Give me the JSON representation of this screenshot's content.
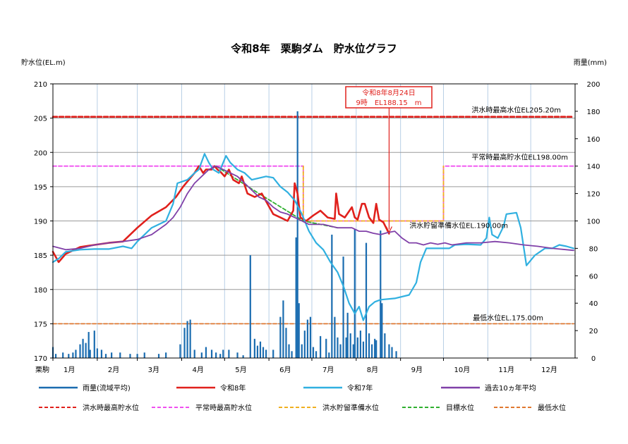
{
  "chart_data": {
    "type": "line",
    "title": "令和8年　栗駒ダム　貯水位グラフ",
    "ylabel_left": "貯水位(EL.m)",
    "ylabel_right": "雨量(mm)",
    "ylim_left": [
      170,
      210
    ],
    "ylim_right": [
      0,
      200
    ],
    "y_ticks_left": [
      170,
      175,
      180,
      185,
      190,
      195,
      200,
      205,
      210
    ],
    "y_ticks_right": [
      0,
      20,
      40,
      60,
      80,
      100,
      120,
      140,
      160,
      180,
      200
    ],
    "x_label_first": "栗駒",
    "x_months": [
      "1月",
      "2月",
      "3月",
      "4月",
      "5月",
      "6月",
      "7月",
      "8月",
      "9月",
      "10月",
      "11月",
      "12月"
    ],
    "xlim": [
      1,
      366
    ],
    "grid": true,
    "legend_position": "bottom",
    "callout": {
      "line1": "令和8年8月24日",
      "line2": "9時　EL188.15　m",
      "target": [
        236,
        188.15
      ]
    },
    "levels": [
      {
        "name": "洪水時最高貯水位",
        "label": "洪水時最高水位EL205.20m",
        "color": "#e0201c",
        "points": [
          [
            1,
            205.2
          ],
          [
            365,
            205.2
          ]
        ]
      },
      {
        "name": "平常時最高貯水位",
        "label": "平常時最高貯水位EL198.00m",
        "color": "#f050f0",
        "points": [
          [
            1,
            198
          ],
          [
            176,
            198
          ],
          [
            176,
            190
          ],
          [
            274,
            190
          ],
          [
            274,
            198
          ],
          [
            365,
            198
          ]
        ]
      },
      {
        "name": "洪水貯留準備水位",
        "label": "洪水貯留準備水位EL.190.00m",
        "color": "#f0b020",
        "points": [
          [
            176,
            198
          ],
          [
            176,
            190
          ],
          [
            274,
            190
          ],
          [
            274,
            198
          ]
        ]
      },
      {
        "name": "目標水位",
        "label": "",
        "color": "#30b030",
        "points": [
          [
            115,
            198
          ],
          [
            145,
            194
          ],
          [
            176,
            190
          ],
          [
            200,
            189
          ]
        ]
      },
      {
        "name": "最低水位",
        "label": "最低水位EL.175.00m",
        "color": "#e07830",
        "points": [
          [
            1,
            175
          ],
          [
            365,
            175
          ]
        ]
      }
    ],
    "series": [
      {
        "name": "令和8年",
        "color": "#e0201c",
        "width": 2.6,
        "points": [
          [
            1,
            185.5
          ],
          [
            5,
            184
          ],
          [
            10,
            185.2
          ],
          [
            20,
            186.2
          ],
          [
            30,
            186.5
          ],
          [
            40,
            186.8
          ],
          [
            50,
            187
          ],
          [
            60,
            189
          ],
          [
            70,
            190.8
          ],
          [
            80,
            192
          ],
          [
            87,
            193.5
          ],
          [
            92,
            195
          ],
          [
            100,
            197
          ],
          [
            103,
            198
          ],
          [
            106,
            197
          ],
          [
            108,
            197.5
          ],
          [
            112,
            197.5
          ],
          [
            114,
            198
          ],
          [
            116,
            197.5
          ],
          [
            118,
            197.2
          ],
          [
            121,
            196.5
          ],
          [
            124,
            197.5
          ],
          [
            127,
            196
          ],
          [
            131,
            195.5
          ],
          [
            133,
            196.5
          ],
          [
            137,
            194
          ],
          [
            142,
            193.5
          ],
          [
            147,
            194
          ],
          [
            151,
            192.5
          ],
          [
            155,
            191
          ],
          [
            160,
            190.5
          ],
          [
            165,
            190
          ],
          [
            169,
            191.5
          ],
          [
            170,
            195.5
          ],
          [
            172,
            194
          ],
          [
            174,
            190.5
          ],
          [
            178,
            190
          ],
          [
            183,
            190.8
          ],
          [
            188,
            191.5
          ],
          [
            193,
            190.5
          ],
          [
            198,
            190.3
          ],
          [
            199,
            194
          ],
          [
            201,
            191
          ],
          [
            205,
            190.5
          ],
          [
            210,
            192
          ],
          [
            212,
            190.5
          ],
          [
            214,
            190.2
          ],
          [
            217,
            192.5
          ],
          [
            219,
            192.5
          ],
          [
            222,
            190.5
          ],
          [
            225,
            189.7
          ],
          [
            227,
            192.5
          ],
          [
            229,
            190.2
          ],
          [
            232,
            189.8
          ],
          [
            236,
            188.15
          ]
        ]
      },
      {
        "name": "令和7年",
        "color": "#30b0e0",
        "width": 2.2,
        "points": [
          [
            1,
            184
          ],
          [
            5,
            184.5
          ],
          [
            10,
            185.5
          ],
          [
            20,
            185.8
          ],
          [
            30,
            185.9
          ],
          [
            40,
            185.9
          ],
          [
            50,
            186.3
          ],
          [
            56,
            186
          ],
          [
            60,
            187
          ],
          [
            65,
            188
          ],
          [
            70,
            189
          ],
          [
            80,
            190
          ],
          [
            85,
            192.5
          ],
          [
            88,
            195.5
          ],
          [
            95,
            196
          ],
          [
            100,
            197
          ],
          [
            103,
            197.5
          ],
          [
            107,
            199.8
          ],
          [
            110,
            198.5
          ],
          [
            113,
            197.5
          ],
          [
            117,
            197
          ],
          [
            122,
            199.5
          ],
          [
            125,
            198.5
          ],
          [
            130,
            197.5
          ],
          [
            135,
            197
          ],
          [
            140,
            196
          ],
          [
            150,
            196.5
          ],
          [
            155,
            196.3
          ],
          [
            160,
            195
          ],
          [
            165,
            194.2
          ],
          [
            170,
            193
          ],
          [
            175,
            191
          ],
          [
            180,
            188.5
          ],
          [
            185,
            186.8
          ],
          [
            190,
            185.8
          ],
          [
            195,
            184
          ],
          [
            200,
            182.5
          ],
          [
            204,
            180.5
          ],
          [
            208,
            178
          ],
          [
            212,
            176.5
          ],
          [
            215,
            177.5
          ],
          [
            218,
            175.5
          ],
          [
            222,
            177.5
          ],
          [
            226,
            178.2
          ],
          [
            230,
            178.5
          ],
          [
            240,
            178.7
          ],
          [
            250,
            179.2
          ],
          [
            255,
            181
          ],
          [
            258,
            184
          ],
          [
            262,
            186
          ],
          [
            268,
            186
          ],
          [
            278,
            186
          ],
          [
            282,
            186.5
          ],
          [
            290,
            186.6
          ],
          [
            300,
            186.5
          ],
          [
            304,
            187.5
          ],
          [
            306,
            190.5
          ],
          [
            308,
            188
          ],
          [
            312,
            187.5
          ],
          [
            316,
            189.2
          ],
          [
            318,
            191
          ],
          [
            325,
            191.2
          ],
          [
            328,
            189
          ],
          [
            332,
            183.5
          ],
          [
            338,
            185
          ],
          [
            345,
            186
          ],
          [
            350,
            186
          ],
          [
            355,
            186.5
          ],
          [
            360,
            186.3
          ],
          [
            365,
            186
          ]
        ]
      },
      {
        "name": "過去10ヵ年平均",
        "color": "#8040a8",
        "width": 1.8,
        "points": [
          [
            1,
            186.3
          ],
          [
            10,
            185.8
          ],
          [
            20,
            186
          ],
          [
            30,
            186.5
          ],
          [
            40,
            186.8
          ],
          [
            50,
            187
          ],
          [
            60,
            187.3
          ],
          [
            70,
            188
          ],
          [
            80,
            189.5
          ],
          [
            85,
            190.5
          ],
          [
            90,
            192
          ],
          [
            95,
            194
          ],
          [
            100,
            195.5
          ],
          [
            105,
            196.5
          ],
          [
            110,
            197.5
          ],
          [
            115,
            198
          ],
          [
            120,
            197.5
          ],
          [
            125,
            197
          ],
          [
            130,
            196.5
          ],
          [
            135,
            195.5
          ],
          [
            140,
            194.5
          ],
          [
            145,
            193.5
          ],
          [
            150,
            193
          ],
          [
            155,
            192
          ],
          [
            160,
            191.3
          ],
          [
            165,
            191
          ],
          [
            170,
            190.5
          ],
          [
            175,
            190
          ],
          [
            180,
            189.5
          ],
          [
            190,
            189.5
          ],
          [
            200,
            189
          ],
          [
            210,
            189
          ],
          [
            215,
            188.5
          ],
          [
            220,
            188.5
          ],
          [
            225,
            188.2
          ],
          [
            230,
            188
          ],
          [
            235,
            188.3
          ],
          [
            240,
            188.5
          ],
          [
            245,
            187.5
          ],
          [
            250,
            186.8
          ],
          [
            255,
            186.8
          ],
          [
            260,
            186.5
          ],
          [
            265,
            186.8
          ],
          [
            270,
            186.6
          ],
          [
            275,
            186.8
          ],
          [
            280,
            186.5
          ],
          [
            290,
            186.8
          ],
          [
            300,
            186.8
          ],
          [
            310,
            187
          ],
          [
            320,
            186.8
          ],
          [
            330,
            186.5
          ],
          [
            340,
            186.3
          ],
          [
            350,
            186
          ],
          [
            360,
            185.8
          ],
          [
            365,
            185.7
          ]
        ]
      }
    ],
    "rain_series": {
      "name": "雨量(流域平均)",
      "color": "#1a6cb0",
      "values": [
        [
          1,
          8
        ],
        [
          3,
          3
        ],
        [
          8,
          4
        ],
        [
          12,
          3
        ],
        [
          15,
          4
        ],
        [
          17,
          6
        ],
        [
          20,
          10
        ],
        [
          22,
          14
        ],
        [
          24,
          11
        ],
        [
          26,
          19
        ],
        [
          27,
          6
        ],
        [
          30,
          20
        ],
        [
          32,
          7
        ],
        [
          35,
          6
        ],
        [
          38,
          3
        ],
        [
          42,
          4
        ],
        [
          48,
          4
        ],
        [
          55,
          3
        ],
        [
          60,
          3
        ],
        [
          65,
          4
        ],
        [
          75,
          3
        ],
        [
          80,
          4
        ],
        [
          90,
          10
        ],
        [
          93,
          22
        ],
        [
          95,
          27
        ],
        [
          97,
          28
        ],
        [
          100,
          6
        ],
        [
          105,
          4
        ],
        [
          108,
          8
        ],
        [
          112,
          6
        ],
        [
          115,
          4
        ],
        [
          118,
          3
        ],
        [
          120,
          6
        ],
        [
          124,
          6
        ],
        [
          130,
          4
        ],
        [
          134,
          2
        ],
        [
          139,
          75
        ],
        [
          142,
          14
        ],
        [
          144,
          9
        ],
        [
          146,
          12
        ],
        [
          148,
          8
        ],
        [
          150,
          6
        ],
        [
          155,
          6
        ],
        [
          160,
          30
        ],
        [
          162,
          42
        ],
        [
          164,
          22
        ],
        [
          166,
          10
        ],
        [
          168,
          5
        ],
        [
          171,
          88
        ],
        [
          172,
          180
        ],
        [
          173,
          40
        ],
        [
          175,
          10
        ],
        [
          177,
          20
        ],
        [
          179,
          28
        ],
        [
          181,
          30
        ],
        [
          183,
          8
        ],
        [
          185,
          5
        ],
        [
          188,
          16
        ],
        [
          192,
          14
        ],
        [
          194,
          4
        ],
        [
          196,
          90
        ],
        [
          198,
          30
        ],
        [
          200,
          15
        ],
        [
          202,
          10
        ],
        [
          204,
          74
        ],
        [
          206,
          15
        ],
        [
          207,
          33
        ],
        [
          209,
          18
        ],
        [
          211,
          10
        ],
        [
          212,
          94
        ],
        [
          214,
          15
        ],
        [
          216,
          20
        ],
        [
          218,
          12
        ],
        [
          220,
          84
        ],
        [
          222,
          18
        ],
        [
          224,
          10
        ],
        [
          226,
          14
        ],
        [
          227,
          13
        ],
        [
          230,
          93
        ],
        [
          231,
          40
        ],
        [
          233,
          18
        ],
        [
          236,
          10
        ],
        [
          238,
          8
        ],
        [
          241,
          5
        ]
      ]
    },
    "legend": [
      {
        "label": "雨量(流域平均)",
        "color": "#1a6cb0",
        "dash": false
      },
      {
        "label": "令和8年",
        "color": "#e0201c",
        "dash": false
      },
      {
        "label": "令和7年",
        "color": "#30b0e0",
        "dash": false
      },
      {
        "label": "過去10ヵ年平均",
        "color": "#8040a8",
        "dash": false
      },
      {
        "label": "洪水時最高貯水位",
        "color": "#e0201c",
        "dash": true
      },
      {
        "label": "平常時最高貯水位",
        "color": "#f050f0",
        "dash": true
      },
      {
        "label": "洪水貯留準備水位",
        "color": "#f0b020",
        "dash": true
      },
      {
        "label": "目標水位",
        "color": "#30b030",
        "dash": true
      },
      {
        "label": "最低水位",
        "color": "#e07830",
        "dash": true
      }
    ]
  }
}
